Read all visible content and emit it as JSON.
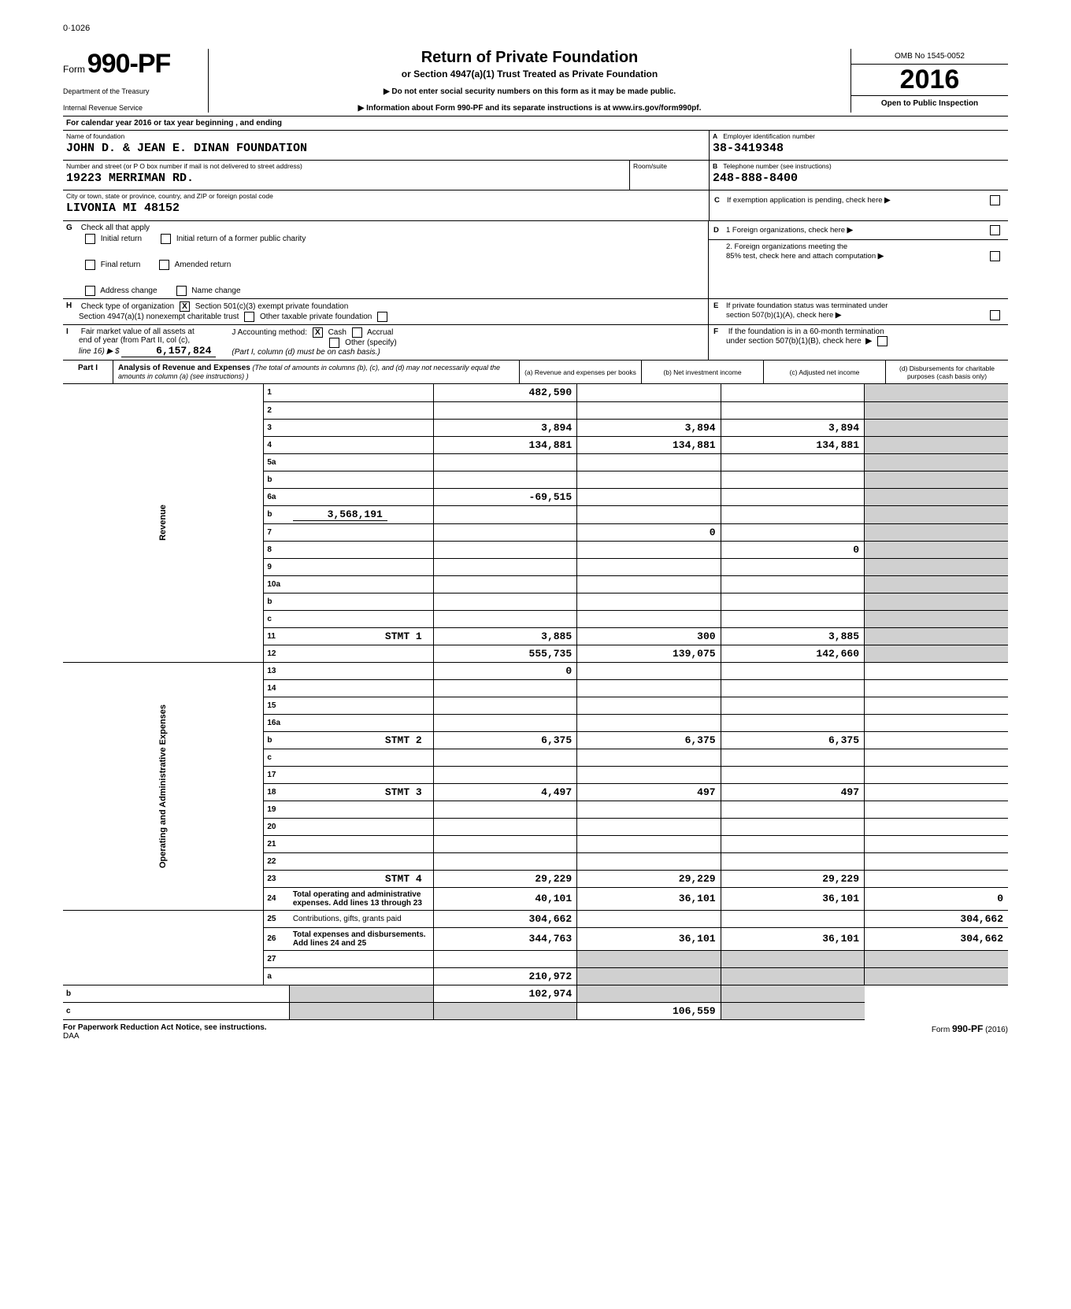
{
  "page_marker": "0·1026",
  "form": {
    "word": "Form",
    "number": "990-PF",
    "dept1": "Department of the Treasury",
    "dept2": "Internal Revenue Service"
  },
  "title": {
    "main": "Return of Private Foundation",
    "sub": "or Section 4947(a)(1) Trust Treated as Private Foundation",
    "instr1": "Do not enter social security numbers on this form as it may be made public.",
    "instr2": "Information about Form 990-PF and its separate instructions is at www.irs.gov/form990pf."
  },
  "year_block": {
    "omb": "OMB No 1545-0052",
    "year": "2016",
    "open": "Open to Public Inspection"
  },
  "calendar": "For calendar year 2016 or tax year beginning                                  , and ending",
  "identity": {
    "name_label": "Name of foundation",
    "name": "JOHN D. & JEAN E. DINAN FOUNDATION",
    "street_label": "Number and street (or P O box number if mail is not delivered to street address)",
    "street": "19223 MERRIMAN RD.",
    "roomsuite_label": "Room/suite",
    "city_label": "City or town, state or province, country, and ZIP or foreign postal code",
    "city": "LIVONIA                    MI  48152",
    "ein_letter": "A",
    "ein_label": "Employer identification number",
    "ein": "38-3419348",
    "phone_letter": "B",
    "phone_label": "Telephone number (see instructions)",
    "phone": "248-888-8400"
  },
  "section_c": {
    "letter": "C",
    "text": "If exemption application is pending, check here"
  },
  "section_g": {
    "letter": "G",
    "label": "Check all that apply",
    "opts": [
      "Initial return",
      "Final return",
      "Address change",
      "Initial return of a former public charity",
      "Amended return",
      "Name change"
    ]
  },
  "section_d": {
    "letter": "D",
    "d1": "1   Foreign organizations, check here",
    "d2": "2.  Foreign organizations meeting the",
    "d2b": "85% test, check here and attach computation"
  },
  "section_h": {
    "letter": "H",
    "label": "Check type of organization",
    "opt1": "Section 501(c)(3) exempt private foundation",
    "opt2": "Section 4947(a)(1) nonexempt charitable trust",
    "opt3": "Other taxable private foundation"
  },
  "section_e": {
    "letter": "E",
    "text1": "If private foundation status was terminated under",
    "text2": "section 507(b)(1)(A), check here"
  },
  "section_i": {
    "letter": "I",
    "text1": "Fair market value of all assets at",
    "text2": "end of year (from Part II, col (c),",
    "text3": "line 16) ▶  $",
    "fmv": "6,157,824",
    "j_label": "J  Accounting method:",
    "j_opts": [
      "Cash",
      "Accrual",
      "Other (specify)"
    ],
    "cash_checked": "X",
    "note": "(Part I, column (d) must be on cash basis.)"
  },
  "section_f": {
    "letter": "F",
    "text1": "If the foundation is in a 60-month termination",
    "text2": "under section 507(b)(1)(B), check here"
  },
  "part1": {
    "label": "Part I",
    "desc_bold": "Analysis of Revenue and Expenses",
    "desc_rest": " (The total of amounts in columns (b), (c), and (d) may not necessarily equal the amounts in column (a) (see instructions) )",
    "col_a": "(a) Revenue and expenses per books",
    "col_b": "(b) Net investment income",
    "col_c": "(c) Adjusted net income",
    "col_d": "(d) Disbursements for charitable purposes (cash basis only)"
  },
  "side_labels": {
    "revenue": "Revenue",
    "operating": "Operating and Administrative Expenses"
  },
  "rows": [
    {
      "n": "1",
      "d": "",
      "a": "482,590",
      "b": "",
      "c": ""
    },
    {
      "n": "2",
      "d": "",
      "a": "",
      "b": "",
      "c": ""
    },
    {
      "n": "3",
      "d": "",
      "a": "3,894",
      "b": "3,894",
      "c": "3,894"
    },
    {
      "n": "4",
      "d": "",
      "a": "134,881",
      "b": "134,881",
      "c": "134,881"
    },
    {
      "n": "5a",
      "d": "",
      "a": "",
      "b": "",
      "c": ""
    },
    {
      "n": "b",
      "d": "",
      "a": "",
      "b": "",
      "c": ""
    },
    {
      "n": "6a",
      "d": "",
      "a": "-69,515",
      "b": "",
      "c": ""
    },
    {
      "n": "b",
      "d": "",
      "inline": "3,568,191",
      "a": "",
      "b": "",
      "c": ""
    },
    {
      "n": "7",
      "d": "",
      "a": "",
      "b": "0",
      "c": ""
    },
    {
      "n": "8",
      "d": "",
      "a": "",
      "b": "",
      "c": "0"
    },
    {
      "n": "9",
      "d": "",
      "a": "",
      "b": "",
      "c": ""
    },
    {
      "n": "10a",
      "d": "",
      "a": "",
      "b": "",
      "c": ""
    },
    {
      "n": "b",
      "d": "",
      "a": "",
      "b": "",
      "c": ""
    },
    {
      "n": "c",
      "d": "",
      "a": "",
      "b": "",
      "c": ""
    },
    {
      "n": "11",
      "d": "",
      "stmt": "STMT 1",
      "a": "3,885",
      "b": "300",
      "c": "3,885"
    },
    {
      "n": "12",
      "d": "",
      "a": "555,735",
      "b": "139,075",
      "c": "142,660",
      "bold": true,
      "shade_d": true
    },
    {
      "n": "13",
      "d": "",
      "a": "0",
      "b": "",
      "c": ""
    },
    {
      "n": "14",
      "d": "",
      "a": "",
      "b": "",
      "c": ""
    },
    {
      "n": "15",
      "d": "",
      "a": "",
      "b": "",
      "c": ""
    },
    {
      "n": "16a",
      "d": "",
      "a": "",
      "b": "",
      "c": ""
    },
    {
      "n": "b",
      "d": "",
      "stmt": "STMT 2",
      "a": "6,375",
      "b": "6,375",
      "c": "6,375"
    },
    {
      "n": "c",
      "d": "",
      "a": "",
      "b": "",
      "c": ""
    },
    {
      "n": "17",
      "d": "",
      "a": "",
      "b": "",
      "c": ""
    },
    {
      "n": "18",
      "d": "",
      "stmt": "STMT 3",
      "a": "4,497",
      "b": "497",
      "c": "497"
    },
    {
      "n": "19",
      "d": "",
      "a": "",
      "b": "",
      "c": ""
    },
    {
      "n": "20",
      "d": "",
      "a": "",
      "b": "",
      "c": ""
    },
    {
      "n": "21",
      "d": "",
      "a": "",
      "b": "",
      "c": ""
    },
    {
      "n": "22",
      "d": "",
      "a": "",
      "b": "",
      "c": ""
    },
    {
      "n": "23",
      "d": "",
      "stmt": "STMT 4",
      "a": "29,229",
      "b": "29,229",
      "c": "29,229"
    },
    {
      "n": "24",
      "d": "Total operating and administrative expenses. Add lines 13 through 23",
      "a": "40,101",
      "b": "36,101",
      "c": "36,101",
      "dd": "0",
      "bold": true
    },
    {
      "n": "25",
      "d": "Contributions, gifts, grants paid",
      "a": "304,662",
      "b": "",
      "c": "",
      "dd": "304,662"
    },
    {
      "n": "26",
      "d": "Total expenses and disbursements. Add lines 24 and 25",
      "a": "344,763",
      "b": "36,101",
      "c": "36,101",
      "dd": "304,662",
      "bold": true
    },
    {
      "n": "27",
      "d": "",
      "a": "",
      "b": "",
      "c": "",
      "shade_bcd": true
    },
    {
      "n": "a",
      "d": "",
      "a": "210,972",
      "b": "",
      "c": "",
      "shade_bcd": true,
      "bold": true
    },
    {
      "n": "b",
      "d": "",
      "a": "",
      "b": "102,974",
      "c": "",
      "shade_acd": true,
      "bold": true
    },
    {
      "n": "c",
      "d": "",
      "a": "",
      "b": "",
      "c": "106,559",
      "shade_abd": true,
      "bold": true
    }
  ],
  "footer": {
    "left": "For Paperwork Reduction Act Notice, see instructions.",
    "daa": "DAA",
    "right_form": "Form",
    "right_number": "990-PF",
    "right_year": "(2016)"
  }
}
